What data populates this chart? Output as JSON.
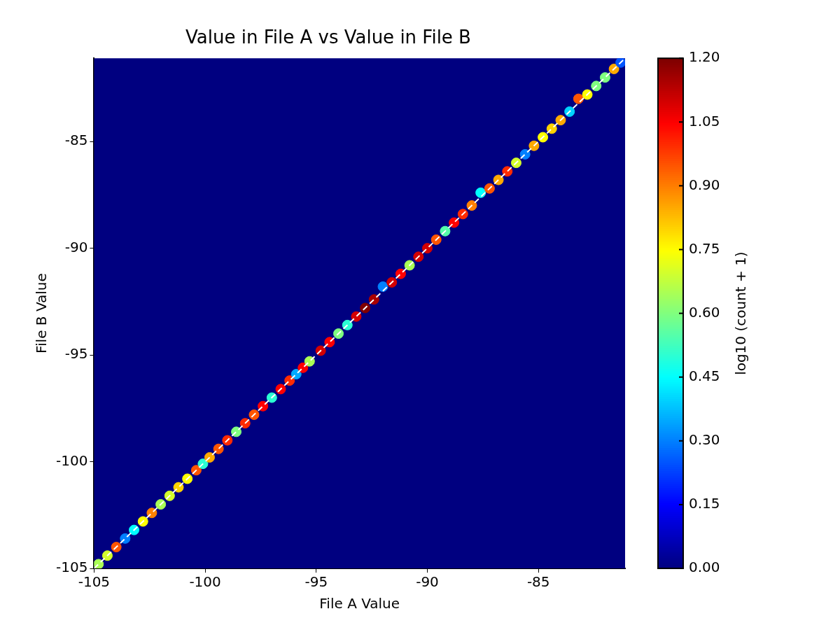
{
  "chart_data": {
    "type": "scatter",
    "title": "Value in File A vs Value in File B",
    "xlabel": "File A Value",
    "ylabel": "File B Value",
    "clabel": "log10 (count + 1)",
    "xlim": [
      -105,
      -81.1
    ],
    "ylim": [
      -105,
      -81.1
    ],
    "xticks": [
      -105,
      -100,
      -95,
      -90,
      -85
    ],
    "yticks": [
      -105,
      -100,
      -95,
      -90,
      -85
    ],
    "clim": [
      0,
      1.2
    ],
    "cticks": [
      {
        "value": 0,
        "label": "0.00"
      },
      {
        "value": 0.15,
        "label": "0.15"
      },
      {
        "value": 0.3,
        "label": "0.30"
      },
      {
        "value": 0.45,
        "label": "0.45"
      },
      {
        "value": 0.6,
        "label": "0.60"
      },
      {
        "value": 0.75,
        "label": "0.75"
      },
      {
        "value": 0.9,
        "label": "0.90"
      },
      {
        "value": 1.05,
        "label": "1.05"
      },
      {
        "value": 1.2,
        "label": "1.20"
      }
    ],
    "grid": false,
    "legend": false,
    "series": [
      {
        "marker": "circle",
        "colors": [
          "#aaff55",
          "#d4ff2b",
          "#ff5500",
          "#0080ff",
          "#00ffff",
          "#ffff00",
          "#ff8000",
          "#aaff55",
          "#d4ff2b",
          "#ffd400",
          "#ffff00",
          "#ff5500",
          "#2bffd4",
          "#ffaa00",
          "#ff5500",
          "#ff2b00",
          "#80ff80",
          "#ff2b00",
          "#ff5500",
          "#ff0000",
          "#2bffd4",
          "#ff0000",
          "#ff2b00",
          "#00aaff",
          "#ff0000",
          "#aaff55",
          "#d40000",
          "#ff0000",
          "#80ff80",
          "#2bffd4",
          "#d40000",
          "#800000",
          "#aa0000",
          "#0080ff",
          "#d40000",
          "#ff0000",
          "#aaff55",
          "#d40000",
          "#d40000",
          "#ff5500",
          "#55ffaa",
          "#ff0000",
          "#ff2b00",
          "#ff8000",
          "#00ffff",
          "#ff5500",
          "#ffaa00",
          "#ff2b00",
          "#d4ff2b",
          "#0080ff",
          "#ffaa00",
          "#ffff00",
          "#ffd400",
          "#ffaa00",
          "#00d4ff",
          "#ff5500",
          "#ffff00",
          "#80ff80",
          "#80ff80",
          "#ffaa00",
          "#0055ff"
        ],
        "x": [
          -104.8,
          -104.4,
          -104.0,
          -103.6,
          -103.2,
          -102.8,
          -102.4,
          -102.0,
          -101.6,
          -101.2,
          -100.8,
          -100.4,
          -100.1,
          -99.8,
          -99.4,
          -99.0,
          -98.6,
          -98.2,
          -97.8,
          -97.4,
          -97.0,
          -96.6,
          -96.2,
          -95.9,
          -95.6,
          -95.3,
          -94.8,
          -94.4,
          -94.0,
          -93.6,
          -93.2,
          -92.8,
          -92.4,
          -92.0,
          -91.6,
          -91.2,
          -90.8,
          -90.4,
          -90.0,
          -89.6,
          -89.2,
          -88.8,
          -88.4,
          -88.0,
          -87.6,
          -87.2,
          -86.8,
          -86.4,
          -86.0,
          -85.6,
          -85.2,
          -84.8,
          -84.4,
          -84.0,
          -83.6,
          -83.2,
          -82.8,
          -82.4,
          -82.0,
          -81.6,
          -81.3
        ],
        "values": [
          -104.8,
          -104.4,
          -104.0,
          -103.6,
          -103.2,
          -102.8,
          -102.4,
          -102.0,
          -101.6,
          -101.2,
          -100.8,
          -100.4,
          -100.1,
          -99.8,
          -99.4,
          -99.0,
          -98.6,
          -98.2,
          -97.8,
          -97.4,
          -97.0,
          -96.6,
          -96.2,
          -95.9,
          -95.6,
          -95.3,
          -94.8,
          -94.4,
          -94.0,
          -93.6,
          -93.2,
          -92.8,
          -92.4,
          -91.8,
          -91.6,
          -91.2,
          -90.8,
          -90.4,
          -90.0,
          -89.6,
          -89.2,
          -88.8,
          -88.4,
          -88.0,
          -87.4,
          -87.2,
          -86.8,
          -86.4,
          -86.0,
          -85.6,
          -85.2,
          -84.8,
          -84.4,
          -84.0,
          -83.6,
          -83.0,
          -82.8,
          -82.4,
          -82.0,
          -81.6,
          -81.3
        ],
        "cvalues": [
          0.65,
          0.7,
          0.95,
          0.3,
          0.45,
          0.75,
          0.9,
          0.65,
          0.7,
          0.8,
          0.75,
          0.95,
          0.5,
          0.85,
          0.95,
          1.0,
          0.6,
          1.0,
          0.95,
          1.05,
          0.5,
          1.05,
          1.0,
          0.35,
          1.05,
          0.65,
          1.1,
          1.05,
          0.6,
          0.5,
          1.1,
          1.2,
          1.15,
          0.3,
          1.1,
          1.05,
          0.65,
          1.1,
          1.1,
          0.95,
          0.55,
          1.05,
          1.0,
          0.9,
          0.45,
          0.95,
          0.85,
          1.0,
          0.7,
          0.3,
          0.85,
          0.75,
          0.8,
          0.85,
          0.4,
          0.95,
          0.75,
          0.6,
          0.6,
          0.85,
          0.25
        ]
      },
      {
        "type": "line",
        "x": [
          -105,
          -81.1
        ],
        "values": [
          -105,
          -81.1
        ],
        "color": "#ffffff",
        "line_style": "dashed"
      }
    ]
  }
}
